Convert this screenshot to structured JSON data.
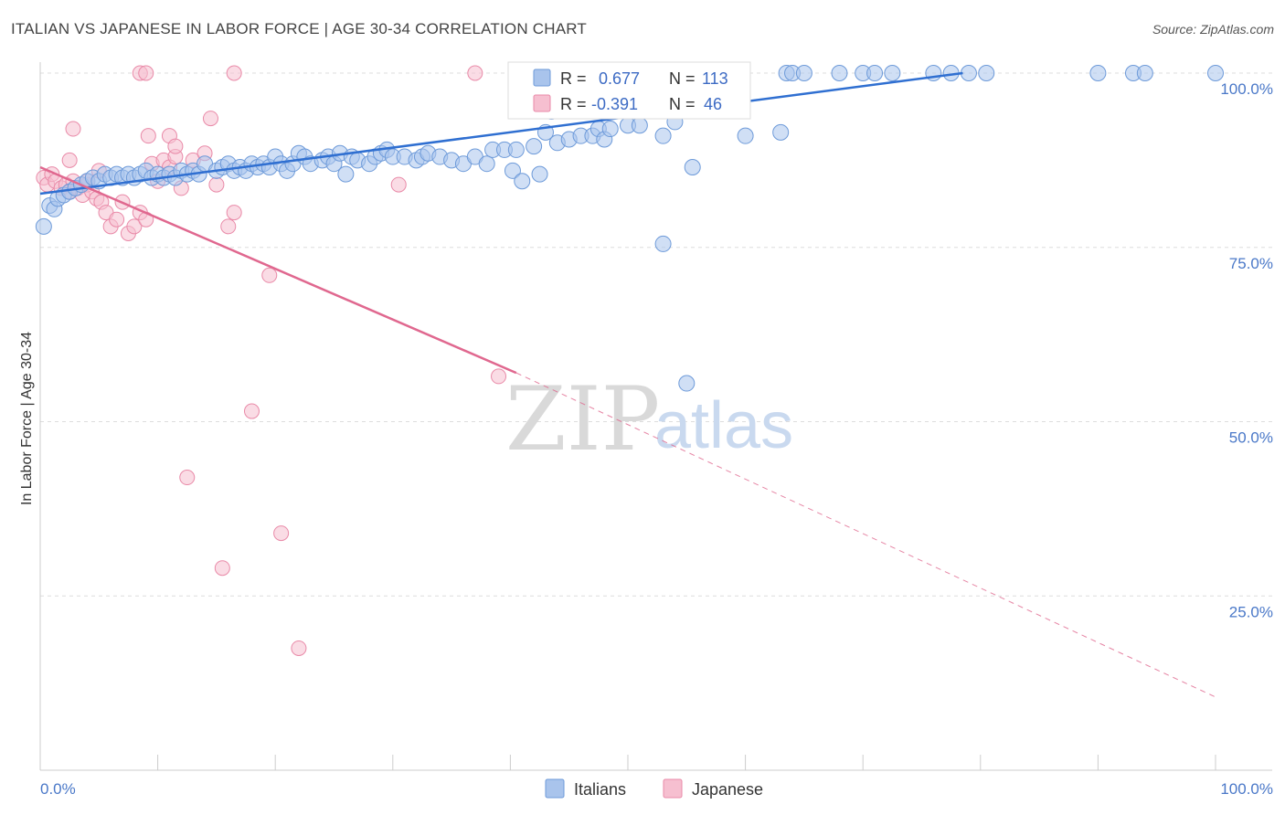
{
  "header": {
    "title": "ITALIAN VS JAPANESE IN LABOR FORCE | AGE 30-34 CORRELATION CHART",
    "source": "Source: ZipAtlas.com"
  },
  "watermark": {
    "zip": "ZIP",
    "atlas": "atlas"
  },
  "legend": {
    "italians": {
      "r_label": "R =",
      "r_value": "0.677",
      "n_label": "N =",
      "n_value": "113"
    },
    "japanese": {
      "r_label": "R =",
      "r_value": "-0.391",
      "n_label": "N =",
      "n_value": "46"
    }
  },
  "colors": {
    "italians_fill": "#a9c4ec",
    "italians_stroke": "#6d9ad9",
    "italians_line": "#2f6fd1",
    "japanese_fill": "#f6bfd0",
    "japanese_stroke": "#e98aa8",
    "japanese_line": "#e0688f",
    "grid": "#dddddd",
    "axis_label": "#4a78c8"
  },
  "chart_data": {
    "type": "scatter",
    "title": "ITALIAN VS JAPANESE IN LABOR FORCE | AGE 30-34 CORRELATION CHART",
    "xlabel": "",
    "ylabel": "In Labor Force | Age 30-34",
    "xlim": [
      0,
      100
    ],
    "ylim": [
      0,
      105
    ],
    "x_tick_labels": [
      "0.0%",
      "100.0%"
    ],
    "y_tick_labels": [
      "100.0%",
      "75.0%",
      "50.0%",
      "25.0%"
    ],
    "y_ticks": [
      100,
      75,
      50,
      25
    ],
    "grid": true,
    "legend_position": "top-center",
    "series": [
      {
        "name": "Italians",
        "color": "#6d9ad9",
        "trend": {
          "x0": 0,
          "y0": 82.7,
          "x1": 78.5,
          "y1": 100
        },
        "points": [
          [
            0.3,
            78
          ],
          [
            0.8,
            81
          ],
          [
            1.2,
            80.5
          ],
          [
            1.5,
            82
          ],
          [
            2,
            82.5
          ],
          [
            2.5,
            83
          ],
          [
            3,
            83.5
          ],
          [
            3.5,
            84
          ],
          [
            4,
            84.5
          ],
          [
            4.5,
            85
          ],
          [
            5,
            84.5
          ],
          [
            5.5,
            85.5
          ],
          [
            6,
            85
          ],
          [
            6.5,
            85.5
          ],
          [
            7,
            85
          ],
          [
            7.5,
            85.5
          ],
          [
            8,
            85
          ],
          [
            8.5,
            85.5
          ],
          [
            9,
            86
          ],
          [
            9.5,
            85
          ],
          [
            10,
            85.5
          ],
          [
            10.5,
            85
          ],
          [
            11,
            85.5
          ],
          [
            11.5,
            85
          ],
          [
            12,
            86
          ],
          [
            12.5,
            85.5
          ],
          [
            13,
            86
          ],
          [
            13.5,
            85.5
          ],
          [
            14,
            87
          ],
          [
            15,
            86
          ],
          [
            15.5,
            86.5
          ],
          [
            16,
            87
          ],
          [
            16.5,
            86
          ],
          [
            17,
            86.5
          ],
          [
            17.5,
            86
          ],
          [
            18,
            87
          ],
          [
            18.5,
            86.5
          ],
          [
            19,
            87
          ],
          [
            19.5,
            86.5
          ],
          [
            20,
            88
          ],
          [
            20.5,
            87
          ],
          [
            21,
            86
          ],
          [
            21.5,
            87
          ],
          [
            22,
            88.5
          ],
          [
            22.5,
            88
          ],
          [
            23,
            87
          ],
          [
            24,
            87.5
          ],
          [
            24.5,
            88
          ],
          [
            25,
            87
          ],
          [
            25.5,
            88.5
          ],
          [
            26,
            85.5
          ],
          [
            26.5,
            88
          ],
          [
            27,
            87.5
          ],
          [
            28,
            87
          ],
          [
            28.5,
            88
          ],
          [
            29,
            88.5
          ],
          [
            29.5,
            89
          ],
          [
            30,
            88
          ],
          [
            31,
            88
          ],
          [
            32,
            87.5
          ],
          [
            32.5,
            88
          ],
          [
            33,
            88.5
          ],
          [
            34,
            88
          ],
          [
            35,
            87.5
          ],
          [
            36,
            87
          ],
          [
            37,
            88
          ],
          [
            38,
            87
          ],
          [
            38.5,
            89
          ],
          [
            39.5,
            89
          ],
          [
            40.5,
            89
          ],
          [
            40.2,
            86
          ],
          [
            42,
            89.5
          ],
          [
            41,
            84.5
          ],
          [
            42.5,
            85.5
          ],
          [
            43,
            91.5
          ],
          [
            43.5,
            94.5
          ],
          [
            44,
            90
          ],
          [
            45,
            90.5
          ],
          [
            46,
            91
          ],
          [
            47,
            91
          ],
          [
            47.5,
            92
          ],
          [
            48,
            90.5
          ],
          [
            48.5,
            92
          ],
          [
            49,
            95
          ],
          [
            50,
            92.5
          ],
          [
            51,
            92.5
          ],
          [
            53,
            91
          ],
          [
            54,
            93
          ],
          [
            55,
            98
          ],
          [
            56.5,
            96.5
          ],
          [
            58,
            98
          ],
          [
            59,
            100
          ],
          [
            60,
            91
          ],
          [
            63,
            91.5
          ],
          [
            63.5,
            100
          ],
          [
            64,
            100
          ],
          [
            65,
            100
          ],
          [
            68,
            100
          ],
          [
            70,
            100
          ],
          [
            71,
            100
          ],
          [
            72.5,
            100
          ],
          [
            76,
            100
          ],
          [
            77.5,
            100
          ],
          [
            79,
            100
          ],
          [
            80.5,
            100
          ],
          [
            90,
            100
          ],
          [
            93,
            100
          ],
          [
            94,
            100
          ],
          [
            100,
            100
          ],
          [
            53,
            75.5
          ],
          [
            55,
            55.5
          ],
          [
            55.5,
            86.5
          ]
        ]
      },
      {
        "name": "Japanese",
        "color": "#e98aa8",
        "trend": {
          "x0": 0,
          "y0": 86.5,
          "x1": 40.5,
          "y1": 57,
          "dashed_to_x": 100,
          "dashed_to_y": 10.5
        },
        "points": [
          [
            0.3,
            85
          ],
          [
            0.6,
            84
          ],
          [
            1,
            85.5
          ],
          [
            1.3,
            84.5
          ],
          [
            1.8,
            83.5
          ],
          [
            2.2,
            84
          ],
          [
            2.5,
            83
          ],
          [
            2.8,
            84.5
          ],
          [
            3.2,
            83.5
          ],
          [
            3.6,
            82.5
          ],
          [
            4,
            84
          ],
          [
            4.4,
            83
          ],
          [
            4.8,
            82
          ],
          [
            5.2,
            81.5
          ],
          [
            5.6,
            80
          ],
          [
            6,
            78
          ],
          [
            6.5,
            79
          ],
          [
            7,
            81.5
          ],
          [
            7.5,
            77
          ],
          [
            8,
            78
          ],
          [
            8.5,
            80
          ],
          [
            9,
            79
          ],
          [
            9.5,
            87
          ],
          [
            10,
            84.5
          ],
          [
            10.5,
            87.5
          ],
          [
            11,
            86.5
          ],
          [
            11.5,
            88
          ],
          [
            12,
            83.5
          ],
          [
            13,
            87.5
          ],
          [
            14,
            88.5
          ],
          [
            15,
            84
          ],
          [
            16,
            78
          ],
          [
            16.5,
            80
          ],
          [
            8.5,
            100
          ],
          [
            9,
            100
          ],
          [
            16.5,
            100
          ],
          [
            37,
            100
          ],
          [
            2.8,
            92
          ],
          [
            9.2,
            91
          ],
          [
            11,
            91
          ],
          [
            11.5,
            89.5
          ],
          [
            14.5,
            93.5
          ],
          [
            19.5,
            71
          ],
          [
            18,
            51.5
          ],
          [
            12.5,
            42
          ],
          [
            20.5,
            34
          ],
          [
            15.5,
            29
          ],
          [
            22,
            17.5
          ],
          [
            39,
            56.5
          ],
          [
            30.5,
            84
          ],
          [
            2.5,
            87.5
          ],
          [
            5,
            86
          ],
          [
            4,
            84.5
          ]
        ]
      }
    ]
  }
}
